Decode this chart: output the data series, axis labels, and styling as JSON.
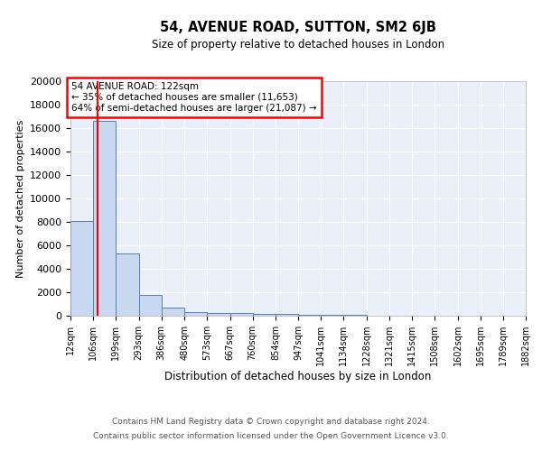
{
  "title": "54, AVENUE ROAD, SUTTON, SM2 6JB",
  "subtitle": "Size of property relative to detached houses in London",
  "xlabel": "Distribution of detached houses by size in London",
  "ylabel": "Number of detached properties",
  "footnote1": "Contains HM Land Registry data © Crown copyright and database right 2024.",
  "footnote2": "Contains public sector information licensed under the Open Government Licence v3.0.",
  "annotation_line1": "54 AVENUE ROAD: 122sqm",
  "annotation_line2": "← 35% of detached houses are smaller (11,653)",
  "annotation_line3": "64% of semi-detached houses are larger (21,087) →",
  "bin_edges": [
    12,
    106,
    199,
    293,
    386,
    480,
    573,
    667,
    760,
    854,
    947,
    1041,
    1134,
    1228,
    1321,
    1415,
    1508,
    1602,
    1695,
    1789,
    1882
  ],
  "bar_heights": [
    8050,
    16600,
    5300,
    1750,
    700,
    310,
    255,
    200,
    155,
    140,
    95,
    60,
    40,
    30,
    20,
    15,
    12,
    10,
    8,
    6
  ],
  "bar_color": "#c8d8f0",
  "bar_edge_color": "#5580b0",
  "red_line_x": 122,
  "background_color": "#eaf0fa",
  "ylim": [
    0,
    20000
  ],
  "yticks": [
    0,
    2000,
    4000,
    6000,
    8000,
    10000,
    12000,
    14000,
    16000,
    18000,
    20000
  ]
}
